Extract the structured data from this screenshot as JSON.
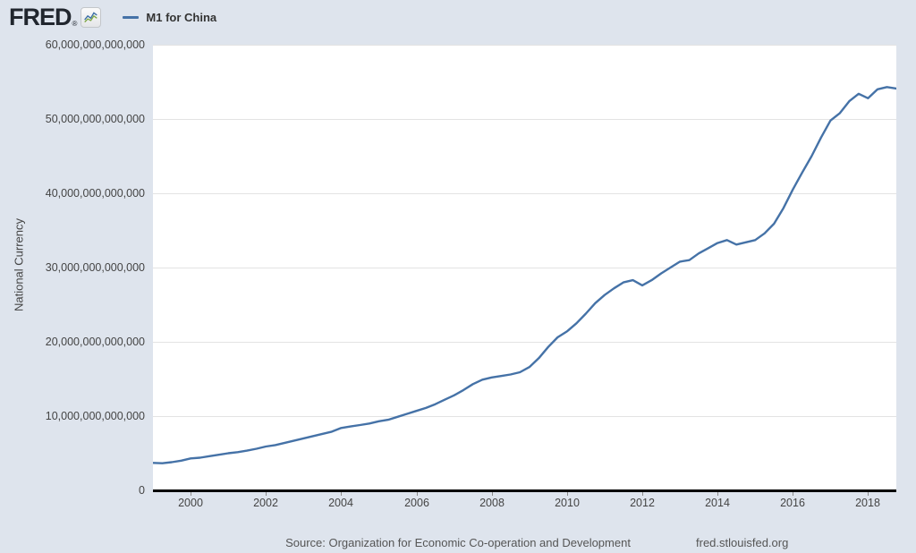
{
  "header": {
    "logo_text": "FRED",
    "logo_reg": "®",
    "legend": {
      "label": "M1 for China",
      "line_color": "#4572a7"
    }
  },
  "chart_data": {
    "type": "line",
    "title": "M1 for China",
    "ylabel": "National Currency",
    "xlabel": "",
    "grid": true,
    "legend_position": "top-left",
    "line_color": "#4572a7",
    "plot_background": "#ffffff",
    "page_background": "#dee4ed",
    "gridline_color": "#e3e3e3",
    "xlim": [
      1999.0,
      2018.75
    ],
    "ylim": [
      0,
      60000000000000
    ],
    "y_ticks": [
      {
        "value": 0,
        "label": "0"
      },
      {
        "value": 10000000000000,
        "label": "10,000,000,000,000"
      },
      {
        "value": 20000000000000,
        "label": "20,000,000,000,000"
      },
      {
        "value": 30000000000000,
        "label": "30,000,000,000,000"
      },
      {
        "value": 40000000000000,
        "label": "40,000,000,000,000"
      },
      {
        "value": 50000000000000,
        "label": "50,000,000,000,000"
      },
      {
        "value": 60000000000000,
        "label": "60,000,000,000,000"
      }
    ],
    "x_ticks": [
      2000,
      2002,
      2004,
      2006,
      2008,
      2010,
      2012,
      2014,
      2016,
      2018
    ],
    "series": [
      {
        "name": "M1 for China",
        "unit": "National Currency",
        "frequency": "quarterly",
        "x": [
          1999.0,
          1999.25,
          1999.5,
          1999.75,
          2000.0,
          2000.25,
          2000.5,
          2000.75,
          2001.0,
          2001.25,
          2001.5,
          2001.75,
          2002.0,
          2002.25,
          2002.5,
          2002.75,
          2003.0,
          2003.25,
          2003.5,
          2003.75,
          2004.0,
          2004.25,
          2004.5,
          2004.75,
          2005.0,
          2005.25,
          2005.5,
          2005.75,
          2006.0,
          2006.25,
          2006.5,
          2006.75,
          2007.0,
          2007.25,
          2007.5,
          2007.75,
          2008.0,
          2008.25,
          2008.5,
          2008.75,
          2009.0,
          2009.25,
          2009.5,
          2009.75,
          2010.0,
          2010.25,
          2010.5,
          2010.75,
          2011.0,
          2011.25,
          2011.5,
          2011.75,
          2012.0,
          2012.25,
          2012.5,
          2012.75,
          2013.0,
          2013.25,
          2013.5,
          2013.75,
          2014.0,
          2014.25,
          2014.5,
          2014.75,
          2015.0,
          2015.25,
          2015.5,
          2015.75,
          2016.0,
          2016.25,
          2016.5,
          2016.75,
          2017.0,
          2017.25,
          2017.5,
          2017.75,
          2018.0,
          2018.25,
          2018.5,
          2018.75
        ],
        "y_trillions": [
          3.7,
          3.65,
          3.8,
          4.0,
          4.3,
          4.4,
          4.6,
          4.8,
          5.0,
          5.15,
          5.35,
          5.6,
          5.9,
          6.1,
          6.4,
          6.7,
          7.0,
          7.3,
          7.6,
          7.9,
          8.4,
          8.6,
          8.8,
          9.0,
          9.3,
          9.5,
          9.9,
          10.3,
          10.7,
          11.1,
          11.6,
          12.2,
          12.8,
          13.5,
          14.3,
          14.9,
          15.2,
          15.4,
          15.6,
          15.9,
          16.6,
          17.8,
          19.3,
          20.6,
          21.4,
          22.5,
          23.8,
          25.2,
          26.3,
          27.2,
          28.0,
          28.3,
          27.6,
          28.3,
          29.2,
          30.0,
          30.8,
          31.0,
          31.9,
          32.6,
          33.3,
          33.7,
          33.1,
          33.4,
          33.7,
          34.6,
          35.9,
          38.0,
          40.5,
          42.8,
          45.0,
          47.5,
          49.8,
          50.8,
          52.4,
          53.4,
          52.8,
          54.0,
          54.3,
          54.1
        ]
      }
    ]
  },
  "footer": {
    "source": "Source: Organization for Economic Co-operation and Development",
    "site": "fred.stlouisfed.org"
  }
}
